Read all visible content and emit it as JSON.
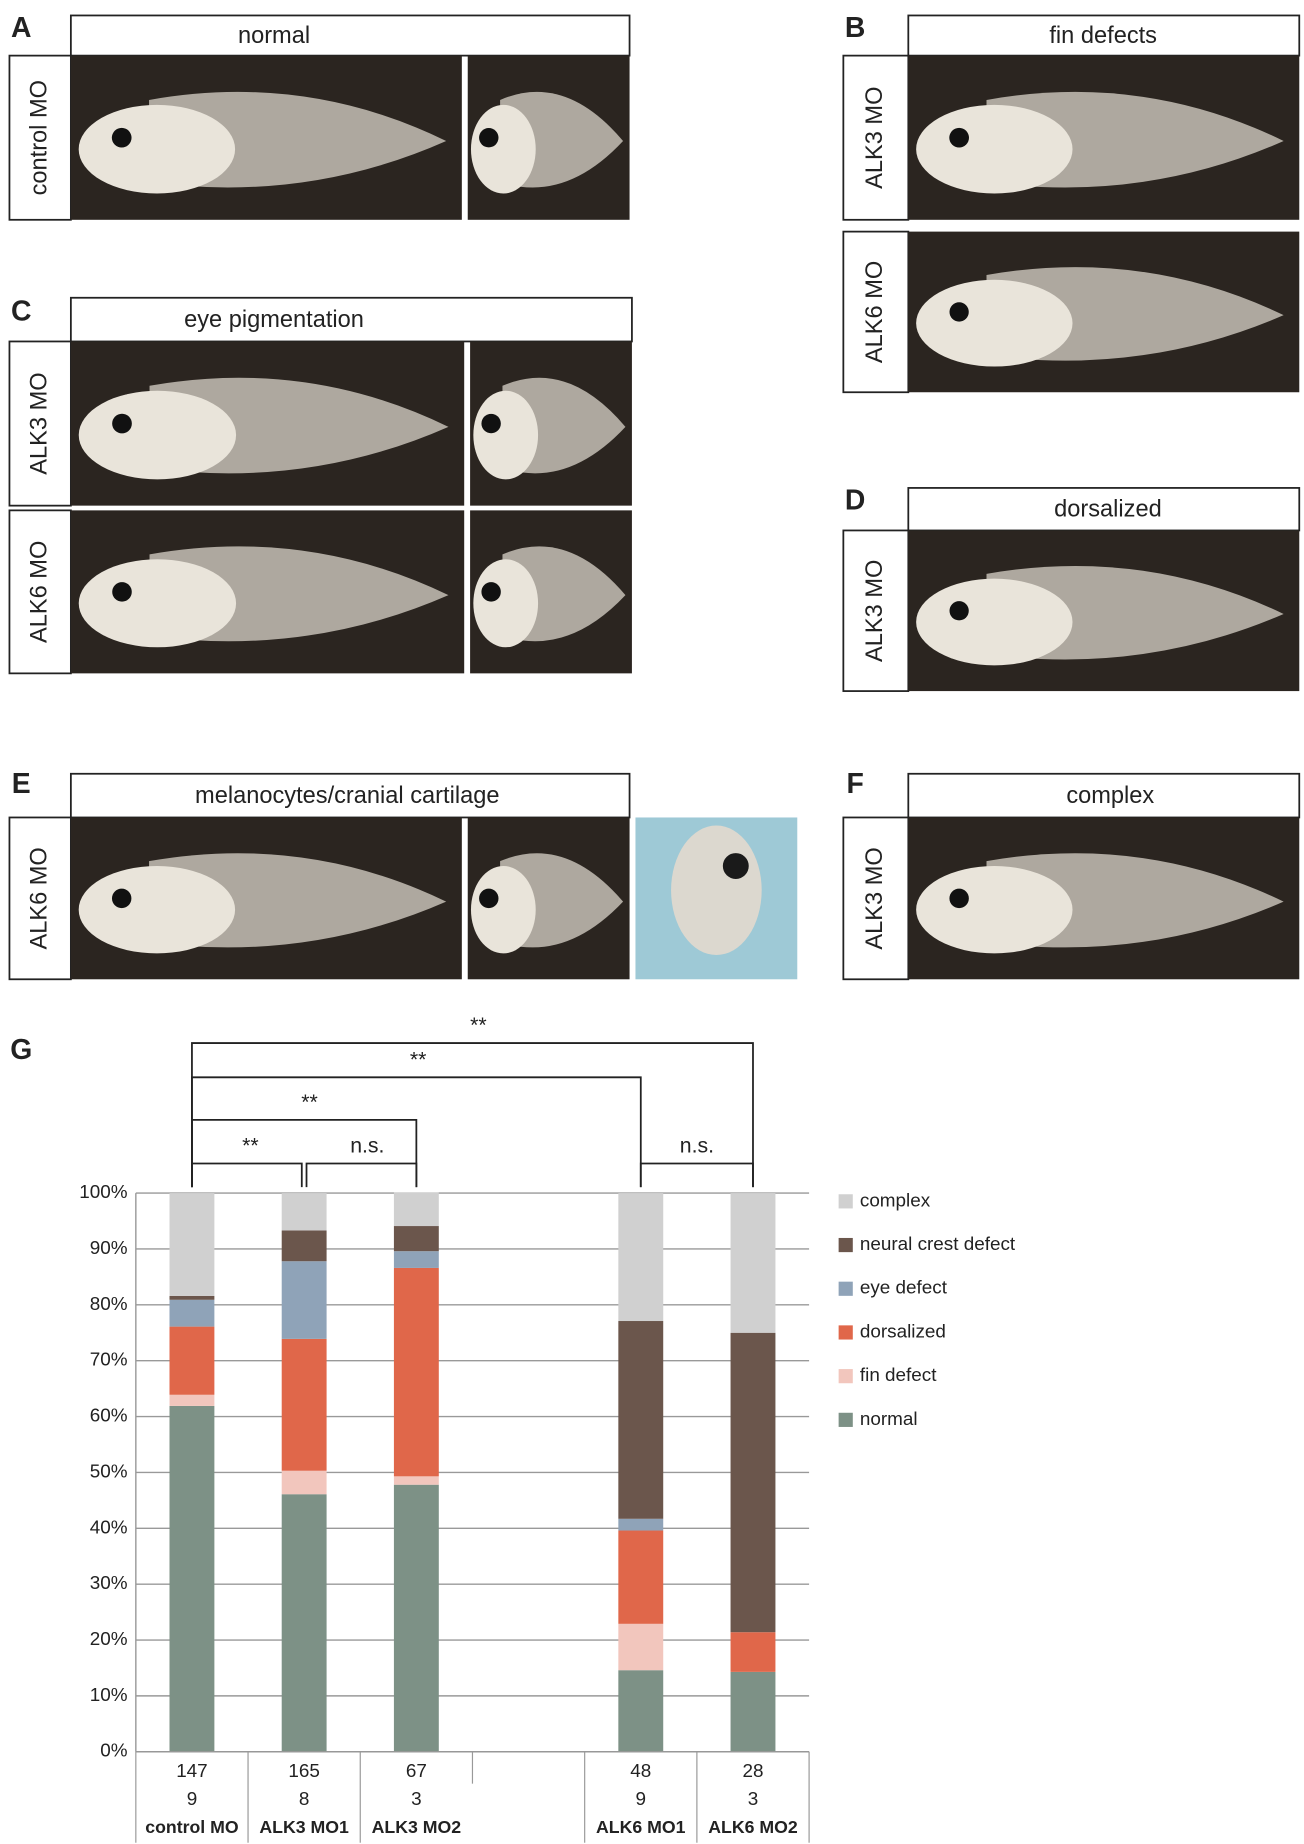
{
  "panels": [
    {
      "label": "A",
      "title": "normal",
      "rows": [
        "control MO"
      ]
    },
    {
      "label": "B",
      "title": "fin defects",
      "rows": [
        "ALK3 MO",
        "ALK6 MO"
      ]
    },
    {
      "label": "C",
      "title": "eye pigmentation",
      "rows": [
        "ALK3 MO",
        "ALK6 MO"
      ]
    },
    {
      "label": "D",
      "title": "dorsalized",
      "rows": [
        "ALK3 MO"
      ]
    },
    {
      "label": "E",
      "title": "melanocytes/cranial cartilage",
      "rows": [
        "ALK6 MO"
      ]
    },
    {
      "label": "F",
      "title": "complex",
      "rows": [
        "ALK3 MO"
      ]
    }
  ],
  "chart_data": {
    "type": "stacked_bar",
    "label": "G",
    "categories": [
      "control MO",
      "ALK3 MO1",
      "ALK3 MO2",
      null,
      "ALK6 MO1",
      "ALK6 MO2"
    ],
    "series": [
      {
        "name": "normal",
        "color": "#7d9186",
        "values": [
          61.9,
          46.1,
          47.8,
          null,
          14.6,
          14.3
        ]
      },
      {
        "name": "fin defect",
        "color": "#f2c6bd",
        "values": [
          2.0,
          4.2,
          1.5,
          null,
          8.3,
          0
        ]
      },
      {
        "name": "dorsalized",
        "color": "#e0674a",
        "values": [
          12.2,
          23.6,
          37.3,
          null,
          16.7,
          7.1
        ]
      },
      {
        "name": "eye defect",
        "color": "#8fa3b8",
        "values": [
          4.8,
          13.9,
          3.0,
          null,
          2.1,
          0
        ]
      },
      {
        "name": "neural crest defect",
        "color": "#6b564c",
        "values": [
          0.7,
          5.5,
          4.5,
          null,
          35.4,
          53.6
        ]
      },
      {
        "name": "complex",
        "color": "#d0d0d0",
        "values": [
          18.4,
          6.7,
          6.0,
          null,
          22.9,
          25.0
        ]
      }
    ],
    "ylim": [
      0,
      100
    ],
    "yticks": [
      {
        "value": 0,
        "label": "0%"
      },
      {
        "value": 10,
        "label": "10%"
      },
      {
        "value": 20,
        "label": "20%"
      },
      {
        "value": 30,
        "label": "30%"
      },
      {
        "value": 40,
        "label": "40%"
      },
      {
        "value": 50,
        "label": "50%"
      },
      {
        "value": 60,
        "label": "60%"
      },
      {
        "value": 70,
        "label": "70%"
      },
      {
        "value": 80,
        "label": "80%"
      },
      {
        "value": 90,
        "label": "90%"
      },
      {
        "value": 100,
        "label": "100%"
      }
    ],
    "grid": true,
    "table": [
      [
        147,
        165,
        67,
        null,
        48,
        28
      ],
      [
        9,
        8,
        3,
        null,
        9,
        3
      ]
    ],
    "annotations": [
      "**",
      "**",
      "**",
      "**",
      "n.s.",
      "n.s."
    ]
  }
}
